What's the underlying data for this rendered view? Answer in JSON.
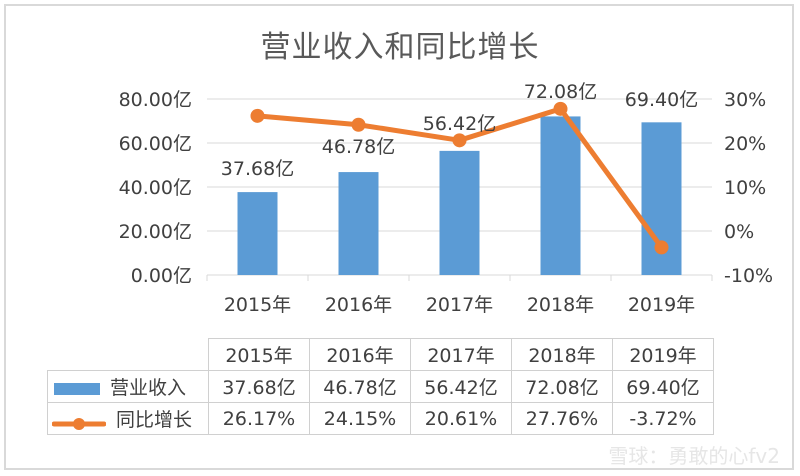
{
  "chart_data": {
    "type": "bar+line",
    "title": "营业收入和同比增长",
    "categories": [
      "2015年",
      "2016年",
      "2017年",
      "2018年",
      "2019年"
    ],
    "series": [
      {
        "name": "营业收入",
        "type": "bar",
        "axis": "left",
        "unit": "亿",
        "values": [
          37.68,
          46.78,
          56.42,
          72.08,
          69.4
        ],
        "labels": [
          "37.68亿",
          "46.78亿",
          "56.42亿",
          "72.08亿",
          "69.40亿"
        ],
        "color": "#5b9bd5"
      },
      {
        "name": "同比增长",
        "type": "line",
        "axis": "right",
        "unit": "%",
        "values": [
          26.17,
          24.15,
          20.61,
          27.76,
          -3.72
        ],
        "labels": [
          "26.17%",
          "24.15%",
          "20.61%",
          "27.76%",
          "-3.72%"
        ],
        "color": "#ed7d31"
      }
    ],
    "left_axis": {
      "ticks": [
        "0.00亿",
        "20.00亿",
        "40.00亿",
        "60.00亿",
        "80.00亿"
      ],
      "ylim": [
        0,
        80
      ]
    },
    "right_axis": {
      "ticks": [
        "-10%",
        "0%",
        "10%",
        "20%",
        "30%"
      ],
      "ylim": [
        -10,
        30
      ]
    },
    "grid": true,
    "legend_position": "data-table"
  },
  "table": {
    "headers": [
      "2015年",
      "2016年",
      "2017年",
      "2018年",
      "2019年"
    ],
    "rows": [
      {
        "label": "营业收入",
        "cells": [
          "37.68亿",
          "46.78亿",
          "56.42亿",
          "72.08亿",
          "69.40亿"
        ]
      },
      {
        "label": "同比增长",
        "cells": [
          "26.17%",
          "24.15%",
          "20.61%",
          "27.76%",
          "-3.72%"
        ]
      }
    ]
  },
  "watermark": "雪球：勇敢的心fv2"
}
